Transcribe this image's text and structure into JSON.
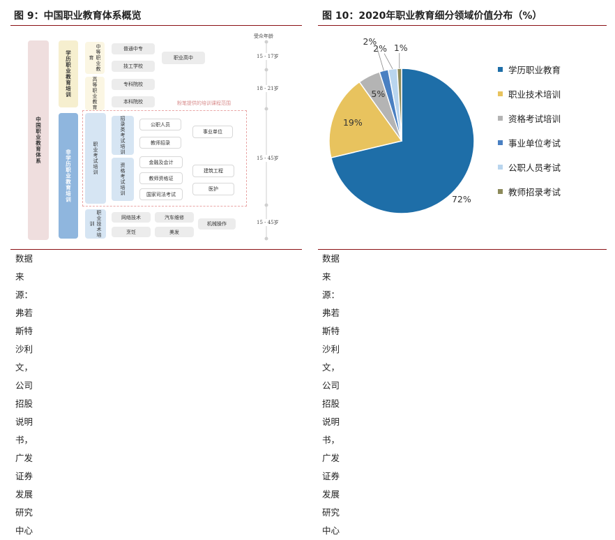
{
  "left": {
    "title": "图 9：中国职业教育体系概览",
    "source_line1": "数据来源：弗若斯特沙利文，公司招股说明书，广发证券发展",
    "source_line2": "研究中心",
    "diagram": {
      "root": "中国职业教育体系",
      "academic": "学历职业教育培训",
      "non_academic": "非学历职业教育培训",
      "secondary": "中等职业教育",
      "higher": "高等职业教育",
      "secondary_items": [
        "普通中专",
        "技工学校"
      ],
      "higher_items": [
        "专科院校",
        "本科院校"
      ],
      "vocational_high": "职业高中",
      "exam_training": "职业考试培训",
      "recruit_exam": "招录类考试培训",
      "qualification_exam": "资格考试培训",
      "recruit_items": [
        "公职人员",
        "教师招录"
      ],
      "public_institution": "事业单位",
      "qualification_items": [
        "金融及会计",
        "教师资格证",
        "国家司法考试"
      ],
      "construction": "建筑工程",
      "medical": "医护",
      "skill_training": "职业技术培训",
      "skill_items": [
        "网络技术",
        "汽车维修",
        "烹饪",
        "美发"
      ],
      "machinery": "机械操作",
      "dashed_caption": "粉笔提供的培训课程范围",
      "age_header": "受众年龄",
      "ages": [
        "15 - 17岁",
        "18 - 21岁",
        "15 - 45岁",
        "15 - 45岁"
      ]
    }
  },
  "right": {
    "title": "图 10：2020年职业教育细分领域价值分布（%）",
    "source_line1": "数据来源：弗若斯特沙利文，公司招股说明书，广发证券发展",
    "source_line2": "研究中心"
  },
  "chart_data": {
    "type": "pie",
    "title": "2020年职业教育细分领域价值分布（%）",
    "categories": [
      "学历职业教育",
      "职业技术培训",
      "资格考试培训",
      "事业单位考试",
      "公职人员考试",
      "教师招录考试"
    ],
    "values": [
      72,
      19,
      5,
      2,
      2,
      1
    ],
    "labels": [
      "72%",
      "19%",
      "5%",
      "2%",
      "2%",
      "1%"
    ],
    "colors": [
      "#1e6ea8",
      "#e8c35e",
      "#b4b4b4",
      "#4a80c2",
      "#b9d5ee",
      "#8c8a5a"
    ],
    "legend_position": "right"
  }
}
